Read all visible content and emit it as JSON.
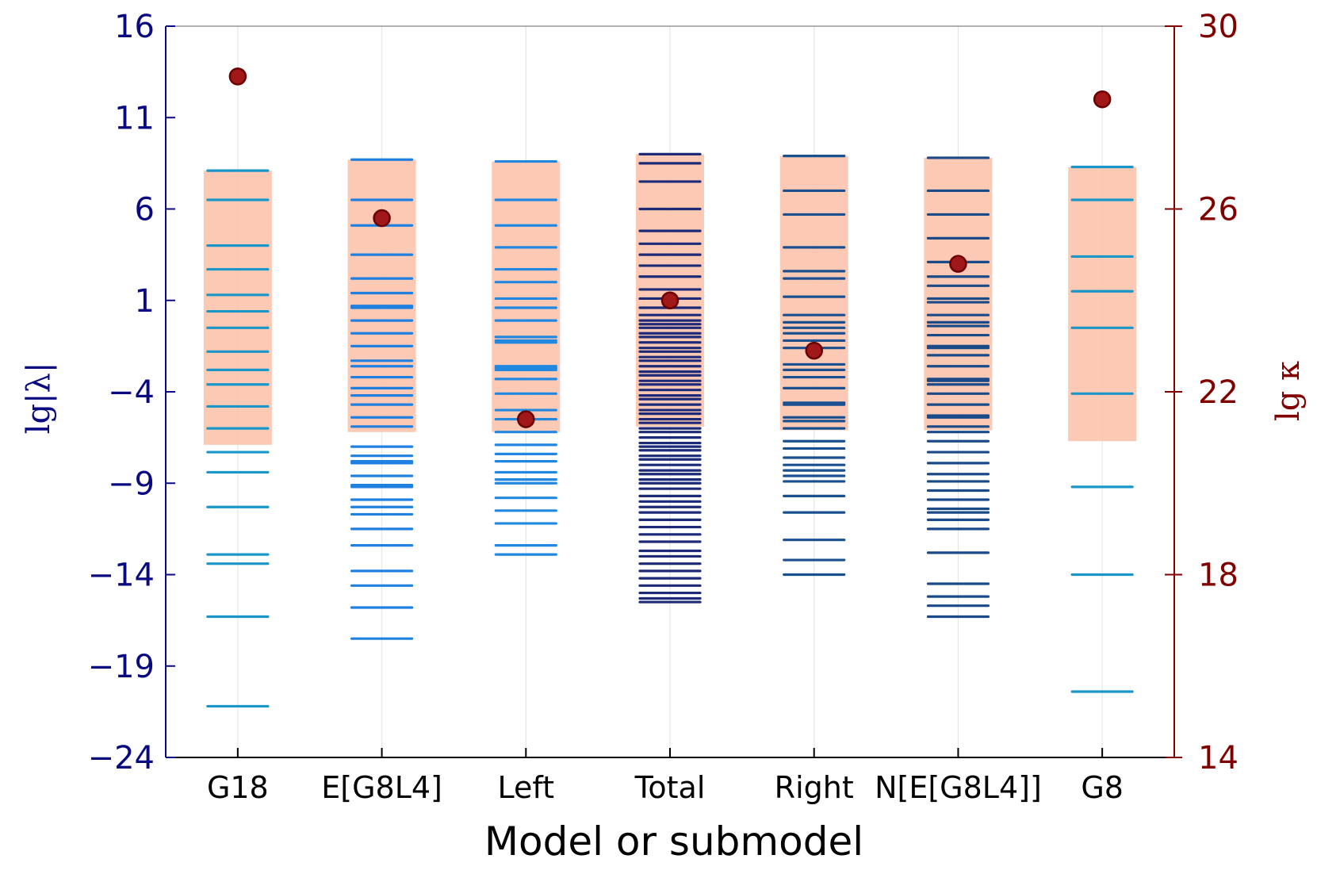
{
  "chart_data": {
    "type": "scatter",
    "xlabel": "Model or submodel",
    "ylabel_left": "lg|λ|",
    "ylabel_right": "lg κ",
    "ylim_left": [
      -24,
      16
    ],
    "ylim_right": [
      14,
      30
    ],
    "yticks_left": [
      "16",
      "11",
      "6",
      "1",
      "−4",
      "−9",
      "−14",
      "−19",
      "−24"
    ],
    "yticks_right": [
      "30",
      "26",
      "22",
      "18",
      "14"
    ],
    "categories": [
      "G18",
      "E[G8L4]",
      "Left",
      "Total",
      "Right",
      "N[E[G8L4]]",
      "G8"
    ],
    "colors": {
      "G18": "#1a96c8",
      "E[G8L4]": "#2080e0",
      "Left": "#2088e0",
      "Total": "#1c2a78",
      "Right": "#1a5090",
      "N[E[G8L4]]": "#1a4a88",
      "G8": "#1a96c8",
      "band": "#fcc4ac",
      "kappa": "#a01818",
      "left_axis": "#0a0a80",
      "right_axis": "#800000"
    },
    "series": [
      {
        "name": "G18",
        "band": [
          -6.9,
          8.1
        ],
        "kappa": 28.9,
        "eigen": [
          8.1,
          6.5,
          4.0,
          2.7,
          1.3,
          0.4,
          -0.5,
          -1.8,
          -2.8,
          -3.6,
          -4.8,
          -6.0,
          -7.3,
          -8.4,
          -10.3,
          -12.9,
          -13.4,
          -16.3,
          -21.2
        ]
      },
      {
        "name": "E[G8L4]",
        "band": [
          -6.2,
          8.7
        ],
        "kappa": 25.8,
        "eigen": [
          8.7,
          6.5,
          5.1,
          3.5,
          2.2,
          1.4,
          0.7,
          0.6,
          -0.1,
          -0.8,
          -1.5,
          -2.3,
          -2.6,
          -3.2,
          -3.8,
          -4.2,
          -4.7,
          -5.4,
          -5.9,
          -7.0,
          -7.5,
          -7.8,
          -7.9,
          -8.6,
          -9.1,
          -9.2,
          -9.9,
          -10.3,
          -10.7,
          -11.5,
          -12.4,
          -13.8,
          -14.6,
          -15.8,
          -17.5
        ]
      },
      {
        "name": "Left",
        "band": [
          -6.2,
          8.6
        ],
        "kappa": 21.4,
        "eigen": [
          8.6,
          6.5,
          5.1,
          3.9,
          2.7,
          2.0,
          1.1,
          0.6,
          -0.1,
          -1.0,
          -1.2,
          -1.3,
          -2.6,
          -2.7,
          -2.8,
          -3.3,
          -4.1,
          -5.0,
          -5.5,
          -6.2,
          -6.9,
          -7.4,
          -7.8,
          -8.4,
          -8.8,
          -9.0,
          -9.8,
          -10.5,
          -11.2,
          -12.4,
          -12.9
        ]
      },
      {
        "name": "Total",
        "band": [
          -5.9,
          9.0
        ],
        "kappa": 24.0,
        "eigen": [
          9.0,
          8.5,
          7.5,
          6.0,
          4.8,
          4.1,
          3.5,
          2.9,
          2.3,
          1.6,
          1.1,
          0.6,
          0.2,
          -0.1,
          -0.3,
          -0.5,
          -0.8,
          -1.0,
          -1.3,
          -1.6,
          -1.8,
          -2.1,
          -2.3,
          -2.6,
          -2.9,
          -3.1,
          -3.4,
          -3.6,
          -3.9,
          -4.2,
          -4.4,
          -4.7,
          -5.0,
          -5.2,
          -5.5,
          -5.7,
          -6.0,
          -6.2,
          -6.5,
          -6.8,
          -7.0,
          -7.2,
          -7.5,
          -7.7,
          -8.0,
          -8.3,
          -8.5,
          -8.8,
          -9.0,
          -9.3,
          -9.7,
          -10.0,
          -10.3,
          -10.6,
          -11.0,
          -11.4,
          -11.8,
          -12.2,
          -12.7,
          -13.0,
          -13.4,
          -13.8,
          -14.2,
          -14.6,
          -15.0,
          -15.3,
          -15.5
        ]
      },
      {
        "name": "Right",
        "band": [
          -6.1,
          8.9
        ],
        "kappa": 22.9,
        "eigen": [
          8.9,
          7.0,
          5.7,
          3.9,
          2.6,
          2.2,
          1.2,
          0.2,
          -0.2,
          -0.5,
          -0.8,
          -1.2,
          -1.6,
          -2.5,
          -2.8,
          -3.2,
          -3.8,
          -4.6,
          -4.7,
          -5.4,
          -5.6,
          -6.0,
          -6.7,
          -7.1,
          -7.6,
          -8.0,
          -8.3,
          -8.6,
          -8.9,
          -9.7,
          -10.6,
          -12.1,
          -13.2,
          -14.0
        ]
      },
      {
        "name": "N[E[G8L4]]",
        "band": [
          -6.1,
          8.8
        ],
        "kappa": 24.8,
        "eigen": [
          8.8,
          7.0,
          5.7,
          4.4,
          3.1,
          2.3,
          1.8,
          1.1,
          0.9,
          0.2,
          -0.2,
          -0.4,
          -0.9,
          -1.5,
          -1.6,
          -2.0,
          -2.6,
          -3.3,
          -3.4,
          -3.6,
          -4.1,
          -4.7,
          -5.3,
          -5.4,
          -5.9,
          -6.2,
          -6.7,
          -7.3,
          -7.9,
          -8.5,
          -8.9,
          -9.4,
          -9.9,
          -10.4,
          -10.6,
          -11.0,
          -11.5,
          -12.8,
          -14.5,
          -15.2,
          -15.7,
          -16.3
        ]
      },
      {
        "name": "G8",
        "band": [
          -6.7,
          8.3
        ],
        "kappa": 28.4,
        "eigen": [
          8.3,
          6.5,
          3.4,
          1.5,
          -0.5,
          -4.1,
          -9.2,
          -14.0,
          -20.4
        ]
      }
    ]
  }
}
